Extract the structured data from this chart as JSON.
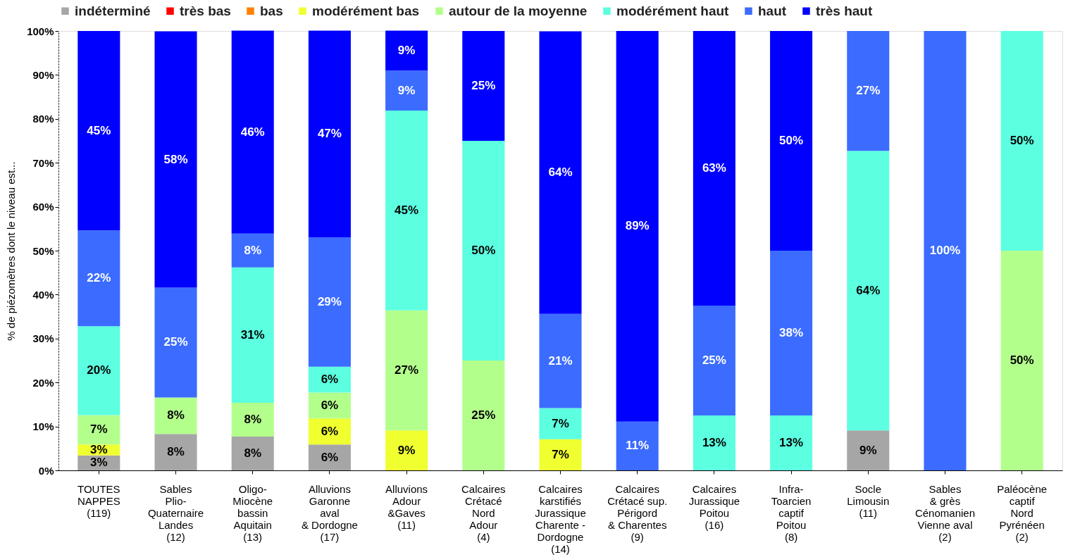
{
  "chart_data": {
    "type": "bar",
    "stacked": true,
    "ylabel": "% de piézomètres dont le niveau est...",
    "categories": [
      "TOUTES\nNAPPES\n(119)",
      "Sables\nPlio-\nQuaternaire\nLandes\n(12)",
      "Oligo-\nMiocène\nbassin\nAquitain\n(13)",
      "Alluvions\nGaronne\naval\n& Dordogne\n(17)",
      "Alluvions\nAdour\n&Gaves\n(11)",
      "Calcaires\nCrétacé\nNord\nAdour\n(4)",
      "Calcaires\nkarstifiés\nJurassique\nCharente -\nDordogne\n(14)",
      "Calcaires\nCrétacé sup.\nPérigord\n& Charentes\n(9)",
      "Calcaires\nJurassique\nPoitou\n(16)",
      "Infra-\nToarcien\ncaptif\nPoitou\n(8)",
      "Socle\nLimousin\n(11)",
      "Sables\n& grès\nCénomanien\nVienne aval\n(2)",
      "Paléocène\ncaptif\nNord\nPyrénéen\n(2)"
    ],
    "series": [
      {
        "name": "indéterminé",
        "color": "#a6a6a6",
        "values": [
          3.4,
          8.3,
          7.7,
          5.9,
          null,
          null,
          null,
          null,
          null,
          null,
          9.1,
          null,
          null
        ],
        "value_labels": [
          "3%",
          "8%",
          "8%",
          "6%",
          null,
          null,
          null,
          null,
          null,
          null,
          "9%",
          null,
          null
        ]
      },
      {
        "name": "très bas",
        "color": "#ff0000",
        "values": [
          null,
          null,
          null,
          null,
          null,
          null,
          null,
          null,
          null,
          null,
          null,
          null,
          null
        ],
        "value_labels": [
          null,
          null,
          null,
          null,
          null,
          null,
          null,
          null,
          null,
          null,
          null,
          null,
          null
        ]
      },
      {
        "name": "bas",
        "color": "#ff8000",
        "values": [
          null,
          null,
          null,
          null,
          null,
          null,
          null,
          null,
          null,
          null,
          null,
          null,
          null
        ],
        "value_labels": [
          null,
          null,
          null,
          null,
          null,
          null,
          null,
          null,
          null,
          null,
          null,
          null,
          null
        ]
      },
      {
        "name": "modérément bas",
        "color": "#f0ff30",
        "values": [
          2.5,
          null,
          null,
          5.9,
          9.1,
          null,
          7.1,
          null,
          null,
          null,
          null,
          null,
          null
        ],
        "value_labels": [
          "3%",
          null,
          null,
          "6%",
          "9%",
          null,
          "7%",
          null,
          null,
          null,
          null,
          null,
          null
        ]
      },
      {
        "name": "autour de la moyenne",
        "color": "#b3ff8c",
        "values": [
          6.7,
          8.3,
          7.7,
          5.9,
          27.3,
          25,
          null,
          null,
          null,
          null,
          null,
          null,
          50
        ],
        "value_labels": [
          "7%",
          "8%",
          "8%",
          "6%",
          "27%",
          "25%",
          null,
          null,
          null,
          null,
          null,
          null,
          "50%"
        ]
      },
      {
        "name": "modérément haut",
        "color": "#5cffe0",
        "values": [
          20.2,
          null,
          30.8,
          5.9,
          45.5,
          50,
          7.1,
          null,
          12.5,
          12.5,
          63.6,
          null,
          50
        ],
        "value_labels": [
          "20%",
          null,
          "31%",
          "6%",
          "45%",
          "50%",
          "7%",
          null,
          "13%",
          "13%",
          "64%",
          null,
          "50%"
        ]
      },
      {
        "name": "haut",
        "color": "#3b6cff",
        "values": [
          21.8,
          25,
          7.7,
          29.4,
          9.1,
          null,
          21.4,
          11.1,
          25,
          37.5,
          27.3,
          100,
          null
        ],
        "value_labels": [
          "22%",
          "25%",
          "8%",
          "29%",
          "9%",
          null,
          "21%",
          "11%",
          "25%",
          "38%",
          "27%",
          "100%",
          null
        ]
      },
      {
        "name": "très haut",
        "color": "#0000ff",
        "values": [
          45.4,
          58.3,
          46.2,
          47.1,
          9.1,
          25,
          64.3,
          88.9,
          62.5,
          50,
          null,
          null,
          null
        ],
        "value_labels": [
          "45%",
          "58%",
          "46%",
          "47%",
          "9%",
          "25%",
          "64%",
          "89%",
          "63%",
          "50%",
          null,
          null,
          null
        ]
      }
    ],
    "ylim": [
      0,
      100
    ],
    "yticks": [
      {
        "value": 0,
        "label": "0%"
      },
      {
        "value": 10,
        "label": "10%"
      },
      {
        "value": 20,
        "label": "20%"
      },
      {
        "value": 30,
        "label": "30%"
      },
      {
        "value": 40,
        "label": "40%"
      },
      {
        "value": 50,
        "label": "50%"
      },
      {
        "value": 60,
        "label": "60%"
      },
      {
        "value": 70,
        "label": "70%"
      },
      {
        "value": 80,
        "label": "80%"
      },
      {
        "value": 90,
        "label": "90%"
      },
      {
        "value": 100,
        "label": "100%"
      }
    ],
    "grid": false,
    "legend": "top"
  }
}
